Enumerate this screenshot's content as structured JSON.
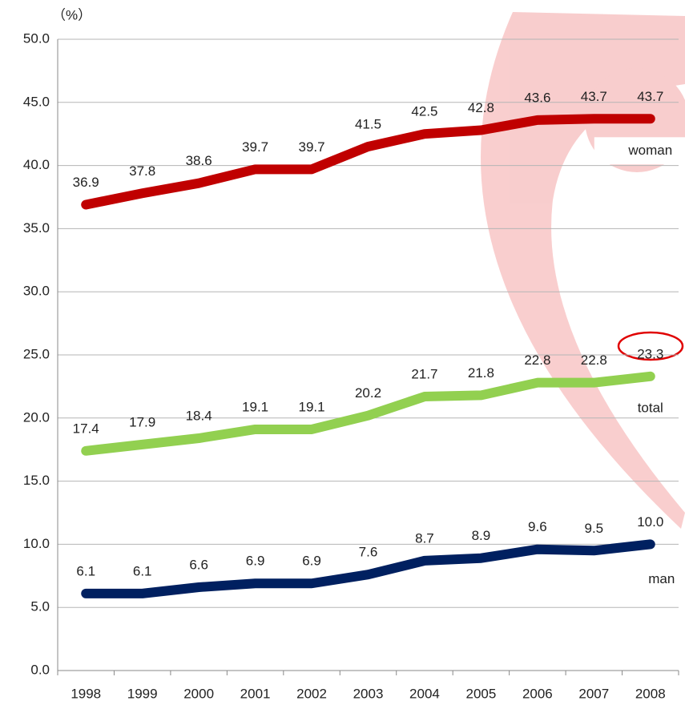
{
  "chart_data": {
    "type": "line",
    "y_axis_label": "（%）",
    "categories": [
      "1998",
      "1999",
      "2000",
      "2001",
      "2002",
      "2003",
      "2004",
      "2005",
      "2006",
      "2007",
      "2008"
    ],
    "series": [
      {
        "name": "woman",
        "color": "#c00000",
        "values": [
          36.9,
          37.8,
          38.6,
          39.7,
          39.7,
          41.5,
          42.5,
          42.8,
          43.6,
          43.7,
          43.7
        ]
      },
      {
        "name": "total",
        "color": "#92d050",
        "values": [
          17.4,
          17.9,
          18.4,
          19.1,
          19.1,
          20.2,
          21.7,
          21.8,
          22.8,
          22.8,
          23.3
        ]
      },
      {
        "name": "man",
        "color": "#002060",
        "values": [
          6.1,
          6.1,
          6.6,
          6.9,
          6.9,
          7.6,
          8.7,
          8.9,
          9.6,
          9.5,
          10.0
        ],
        "value_labels": [
          "6.1",
          "6.1",
          "6.6",
          "6.9",
          "6.9",
          "7.6",
          "8.7",
          "8.9",
          "9.6",
          "9.5",
          "10.0"
        ]
      }
    ],
    "ylim": [
      0,
      50
    ],
    "yticks": [
      {
        "value": 0,
        "label": "0.0"
      },
      {
        "value": 5,
        "label": "5.0"
      },
      {
        "value": 10,
        "label": "10.0"
      },
      {
        "value": 15,
        "label": "15.0"
      },
      {
        "value": 20,
        "label": "20.0"
      },
      {
        "value": 25,
        "label": "25.0"
      },
      {
        "value": 30,
        "label": "30.0"
      },
      {
        "value": 35,
        "label": "35.0"
      },
      {
        "value": 40,
        "label": "40.0"
      },
      {
        "value": 45,
        "label": "45.0"
      },
      {
        "value": 50,
        "label": "50.0"
      }
    ],
    "grid": true
  }
}
